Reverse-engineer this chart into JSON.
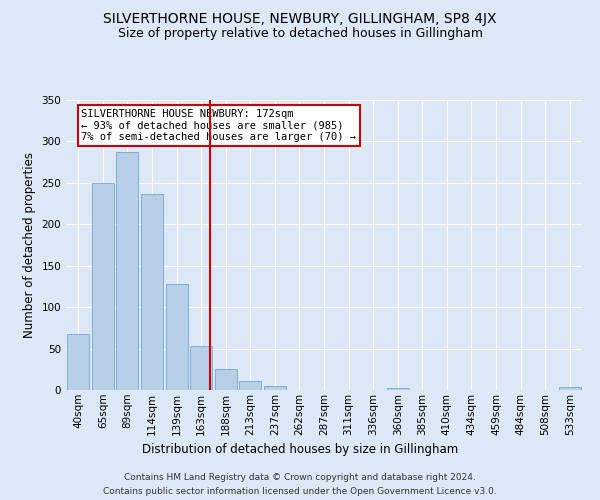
{
  "title": "SILVERTHORNE HOUSE, NEWBURY, GILLINGHAM, SP8 4JX",
  "subtitle": "Size of property relative to detached houses in Gillingham",
  "xlabel": "Distribution of detached houses by size in Gillingham",
  "ylabel": "Number of detached properties",
  "categories": [
    "40sqm",
    "65sqm",
    "89sqm",
    "114sqm",
    "139sqm",
    "163sqm",
    "188sqm",
    "213sqm",
    "237sqm",
    "262sqm",
    "287sqm",
    "311sqm",
    "336sqm",
    "360sqm",
    "385sqm",
    "410sqm",
    "434sqm",
    "459sqm",
    "484sqm",
    "508sqm",
    "533sqm"
  ],
  "values": [
    68,
    250,
    287,
    236,
    128,
    53,
    25,
    11,
    5,
    0,
    0,
    0,
    0,
    3,
    0,
    0,
    0,
    0,
    0,
    0,
    4
  ],
  "bar_color": "#b8cfe8",
  "bar_edge_color": "#6699cc",
  "ylim": [
    0,
    350
  ],
  "yticks": [
    0,
    50,
    100,
    150,
    200,
    250,
    300,
    350
  ],
  "vline_color": "#cc0000",
  "annotation_text": "SILVERTHORNE HOUSE NEWBURY: 172sqm\n← 93% of detached houses are smaller (985)\n7% of semi-detached houses are larger (70) →",
  "annotation_box_edgecolor": "#cc0000",
  "footer_line1": "Contains HM Land Registry data © Crown copyright and database right 2024.",
  "footer_line2": "Contains public sector information licensed under the Open Government Licence v3.0.",
  "background_color": "#dce8f5",
  "plot_background_color": "#dce8f5",
  "grid_color": "#ffffff",
  "title_fontsize": 10,
  "subtitle_fontsize": 9,
  "axis_label_fontsize": 8.5,
  "tick_fontsize": 7.5,
  "annotation_fontsize": 7.5,
  "footer_fontsize": 6.5
}
